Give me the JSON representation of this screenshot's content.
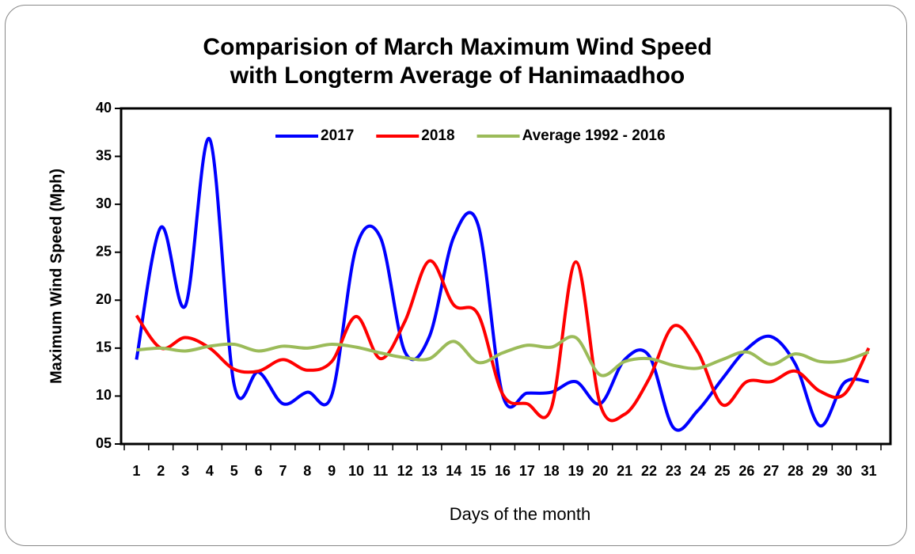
{
  "chart_data": {
    "type": "line",
    "title": "Comparision of March Maximum Wind Speed with Longterm Average of Hanimaadhoo",
    "x_label": "Days of the month",
    "y_label": "Maximum Wind Speed (Mph)",
    "categories": [
      "1",
      "2",
      "3",
      "4",
      "5",
      "6",
      "7",
      "8",
      "9",
      "10",
      "11",
      "12",
      "13",
      "14",
      "15",
      "16",
      "17",
      "18",
      "19",
      "20",
      "21",
      "22",
      "23",
      "24",
      "25",
      "26",
      "27",
      "28",
      "29",
      "30",
      "31"
    ],
    "series": [
      {
        "name": "2017",
        "color": "#0000ff",
        "values": [
          13.8,
          27.6,
          19.4,
          36.8,
          11.2,
          12.5,
          9.2,
          10.4,
          10.1,
          25.5,
          26.5,
          14.6,
          16.2,
          26.6,
          27.8,
          10.1,
          10.3,
          10.4,
          11.5,
          9.2,
          13.8,
          14.2,
          6.7,
          8.5,
          11.8,
          14.9,
          16.2,
          13.3,
          6.9,
          11.4,
          11.5
        ]
      },
      {
        "name": "2018",
        "color": "#ff0000",
        "values": [
          18.4,
          15.0,
          16.1,
          15.0,
          12.8,
          12.6,
          13.8,
          12.7,
          13.6,
          18.3,
          13.9,
          17.8,
          24.1,
          19.5,
          18.5,
          10.2,
          9.2,
          8.8,
          24.0,
          9.1,
          8.1,
          11.8,
          17.3,
          14.6,
          9.1,
          11.5,
          11.5,
          12.6,
          10.5,
          10.2,
          15.0
        ]
      },
      {
        "name": "Average 1992 - 2016",
        "color": "#9bbb59",
        "values": [
          14.8,
          15.0,
          14.7,
          15.2,
          15.4,
          14.7,
          15.2,
          15.0,
          15.4,
          15.1,
          14.5,
          14.0,
          13.9,
          15.7,
          13.5,
          14.5,
          15.3,
          15.1,
          16.1,
          12.2,
          13.6,
          13.9,
          13.2,
          12.9,
          13.8,
          14.6,
          13.3,
          14.4,
          13.6,
          13.7,
          14.6
        ]
      }
    ],
    "ylim": [
      5,
      40
    ],
    "yticks": [
      {
        "value": 5,
        "label": "05"
      },
      10,
      15,
      20,
      25,
      30,
      35,
      40
    ],
    "legend": "top",
    "smooth": true
  }
}
